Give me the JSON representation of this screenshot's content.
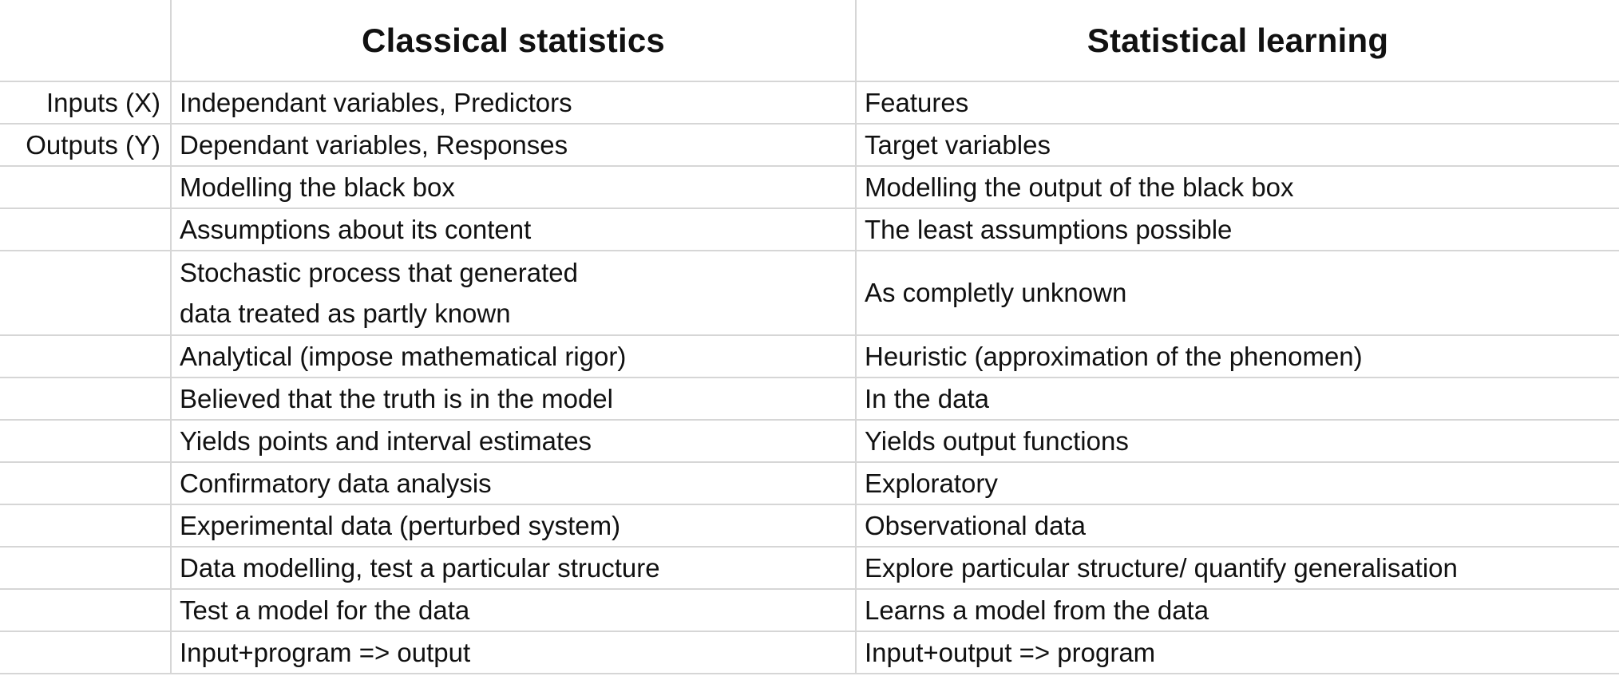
{
  "header": {
    "label": "",
    "classical": "Classical statistics",
    "learning": "Statistical learning"
  },
  "rows": [
    {
      "label": "Inputs (X)",
      "classical": [
        "Independant variables, Predictors"
      ],
      "learning": "Features"
    },
    {
      "label": "Outputs (Y)",
      "classical": [
        "Dependant variables, Responses"
      ],
      "learning": "Target variables"
    },
    {
      "label": "",
      "classical": [
        "Modelling the black box"
      ],
      "learning": "Modelling the output of the black box"
    },
    {
      "label": "",
      "classical": [
        "Assumptions about its content"
      ],
      "learning": "The least assumptions possible"
    },
    {
      "label": "",
      "classical": [
        "Stochastic process that generated",
        "data treated as partly known"
      ],
      "learning": "As completly unknown"
    },
    {
      "label": "",
      "classical": [
        "Analytical (impose mathematical rigor)"
      ],
      "learning": "Heuristic (approximation of the phenomen)"
    },
    {
      "label": "",
      "classical": [
        "Believed that the truth is in the model"
      ],
      "learning": "In the data"
    },
    {
      "label": "",
      "classical": [
        "Yields points and interval estimates"
      ],
      "learning": "Yields output functions"
    },
    {
      "label": "",
      "classical": [
        "Confirmatory data analysis"
      ],
      "learning": "Exploratory"
    },
    {
      "label": "",
      "classical": [
        "Experimental data (perturbed system)"
      ],
      "learning": "Observational data"
    },
    {
      "label": "",
      "classical": [
        "Data modelling, test a particular structure"
      ],
      "learning": "Explore particular structure/ quantify generalisation"
    },
    {
      "label": "",
      "classical": [
        "Test a model for the data"
      ],
      "learning": "Learns a model from the data"
    },
    {
      "label": "",
      "classical": [
        "Input+program => output"
      ],
      "learning": "Input+output => program"
    }
  ]
}
